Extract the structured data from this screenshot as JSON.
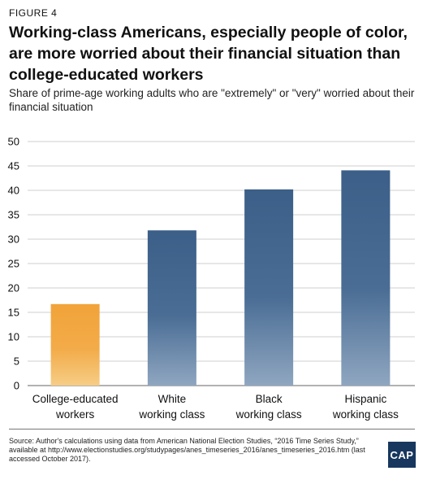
{
  "figure_label": "FIGURE 4",
  "title": "Working-class Americans, especially people of color, are more worried about their financial situation than college-educated workers",
  "subtitle": "Share of prime-age working adults who are \"extremely\" or \"very\" worried about their financial situation",
  "source": "Source: Author's calculations using data from American National Election Studies, “2016 Time Series Study,” available at http://www.electionstudies.org/studypages/anes_timeseries_2016/anes_timeseries_2016.htm (last accessed October 2017).",
  "logo": "CAP",
  "colors": {
    "college": "#f2a339",
    "working_class": "#3d6189"
  },
  "chart_data": {
    "type": "bar",
    "categories": [
      [
        "College-educated",
        "workers"
      ],
      [
        "White",
        "working class"
      ],
      [
        "Black",
        "working class"
      ],
      [
        "Hispanic",
        "working class"
      ]
    ],
    "values": [
      16.7,
      31.8,
      40.2,
      44.1
    ],
    "ylim": [
      0,
      50
    ],
    "yticks": [
      0,
      5,
      10,
      15,
      20,
      25,
      30,
      35,
      40,
      45,
      50
    ],
    "grid": true,
    "xlabel": "",
    "ylabel": ""
  }
}
